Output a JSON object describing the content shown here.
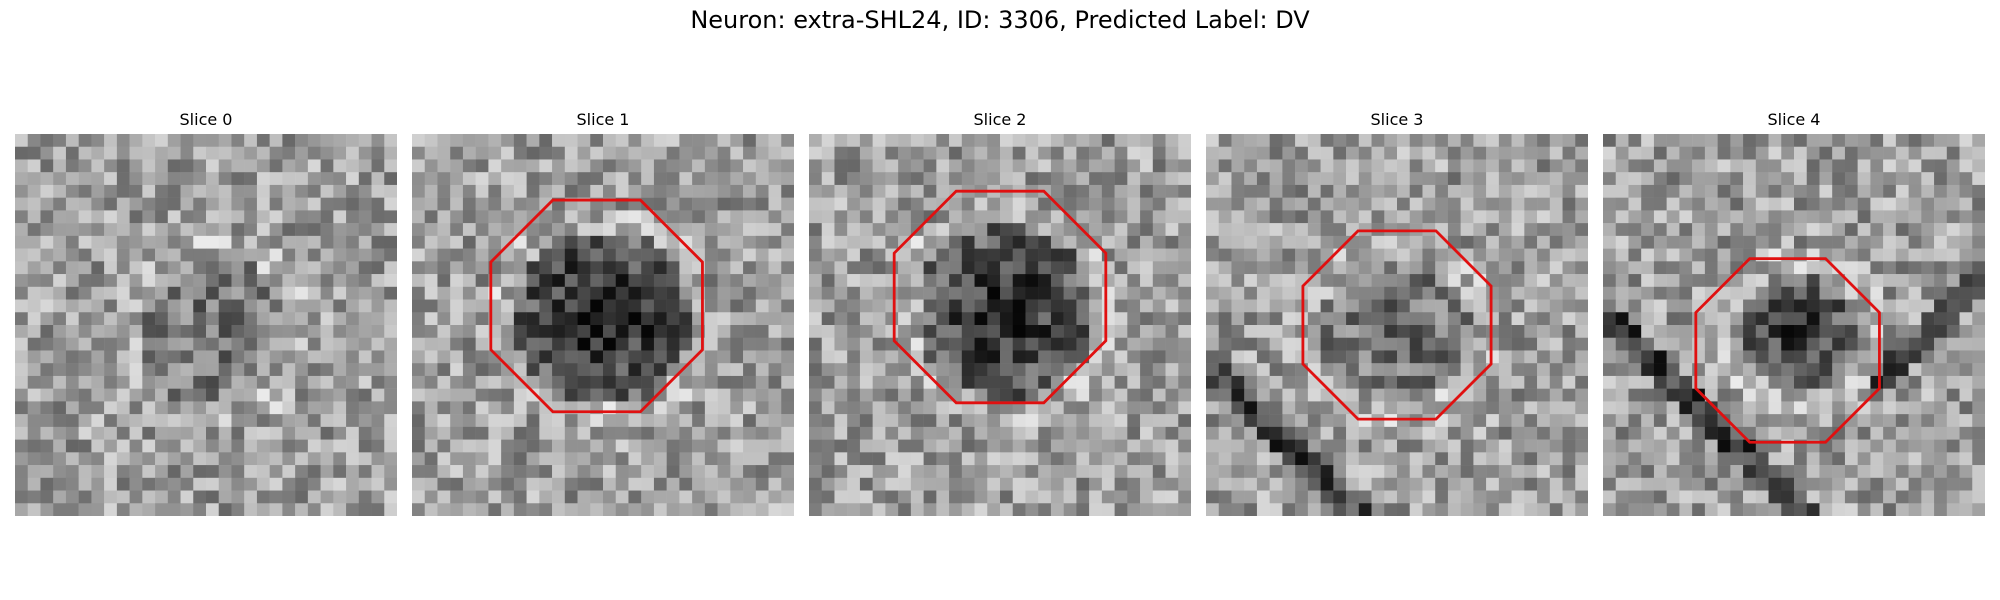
{
  "title": "Neuron: extra-SHL24, ID: 3306, Predicted Label: DV",
  "colors": {
    "outline": "#e01010",
    "background": "#ffffff"
  },
  "slices": [
    {
      "label": "Slice 0",
      "has_outline": false
    },
    {
      "label": "Slice 1",
      "has_outline": true
    },
    {
      "label": "Slice 2",
      "has_outline": true
    },
    {
      "label": "Slice 3",
      "has_outline": true
    },
    {
      "label": "Slice 4",
      "has_outline": true
    }
  ]
}
